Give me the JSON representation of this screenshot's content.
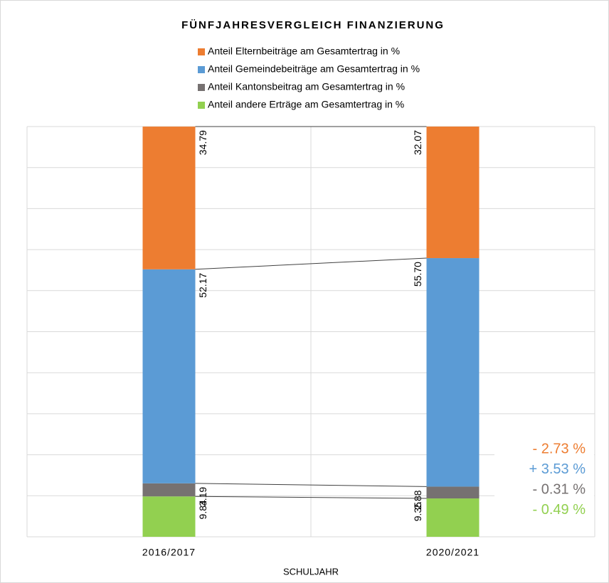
{
  "chart_data": {
    "type": "stacked_bar",
    "title": "FÜNFJAHRESVERGLEICH FINANZIERUNG",
    "x_label": "SCHULJAHR",
    "categories": [
      "2016/2017",
      "2020/2021"
    ],
    "series": [
      {
        "name": "Anteil Elternbeiträge am Gesamtertrag in %",
        "color": "#ed7d31",
        "values": [
          34.79,
          32.07
        ],
        "value_labels": [
          "34.79",
          "32.07"
        ]
      },
      {
        "name": "Anteil Gemeindebeiträge am Gesamtertrag in %",
        "color": "#5b9bd5",
        "values": [
          52.17,
          55.7
        ],
        "value_labels": [
          "52.17",
          "55.70"
        ]
      },
      {
        "name": "Anteil Kantonsbeitrag am Gesamtertrag in %",
        "color": "#767171",
        "values": [
          3.19,
          2.88
        ],
        "value_labels": [
          "3.19",
          "2.88"
        ]
      },
      {
        "name": "Anteil andere Erträge am Gesamtertrag in %",
        "color": "#92d050",
        "values": [
          9.84,
          9.35
        ],
        "value_labels": [
          "9.84",
          "9.35"
        ]
      }
    ],
    "ylim": [
      0,
      100
    ],
    "yticks": [
      0,
      10,
      20,
      30,
      40,
      50,
      60,
      70,
      80,
      90,
      100
    ],
    "grid": true,
    "annotations": [
      {
        "text": "- 2.73 %",
        "color": "#ed7d31"
      },
      {
        "text": "+ 3.53 %",
        "color": "#5b9bd5"
      },
      {
        "text": "- 0.31 %",
        "color": "#767171"
      },
      {
        "text": "- 0.49 %",
        "color": "#92d050"
      }
    ]
  }
}
